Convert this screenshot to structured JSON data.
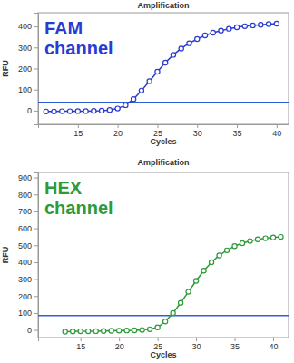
{
  "chart_data": [
    {
      "type": "line",
      "title": "Amplification",
      "x_label": "Cycles",
      "y_label": "RFU",
      "annotation": [
        "FAM",
        "channel"
      ],
      "x": [
        11,
        12,
        13,
        14,
        15,
        16,
        17,
        18,
        19,
        20,
        21,
        22,
        23,
        24,
        25,
        26,
        27,
        28,
        29,
        30,
        31,
        32,
        33,
        34,
        35,
        36,
        37,
        38,
        39,
        40
      ],
      "values": [
        -4,
        -4,
        -3,
        -3,
        -2,
        -2,
        -1,
        0,
        3,
        10,
        26,
        55,
        95,
        140,
        185,
        228,
        265,
        295,
        320,
        340,
        357,
        370,
        380,
        389,
        396,
        401,
        405,
        408,
        411,
        413
      ],
      "color": "#2a3bd1",
      "marker": "circle",
      "threshold": 40,
      "xlim": [
        10,
        41.5
      ],
      "xticks": [
        15,
        20,
        25,
        30,
        35,
        40
      ],
      "ylim": [
        -65,
        465
      ],
      "yticks": [
        0,
        100,
        200,
        300,
        400
      ],
      "grid": false
    },
    {
      "type": "line",
      "title": "Amplification",
      "x_label": "Cycles",
      "y_label": "RFU",
      "annotation": [
        "HEX",
        "channel"
      ],
      "x": [
        13,
        14,
        15,
        16,
        17,
        18,
        19,
        20,
        21,
        22,
        23,
        24,
        25,
        26,
        27,
        28,
        29,
        30,
        31,
        32,
        33,
        34,
        35,
        36,
        37,
        38,
        39,
        40,
        41
      ],
      "values": [
        -10,
        -9,
        -8,
        -8,
        -7,
        -6,
        -5,
        -4,
        -3,
        -2,
        0,
        4,
        15,
        50,
        100,
        160,
        225,
        290,
        350,
        400,
        440,
        470,
        495,
        512,
        525,
        535,
        541,
        546,
        549
      ],
      "color": "#2e9a3a",
      "marker": "circle",
      "threshold": 85,
      "xlim": [
        9.5,
        42
      ],
      "xticks": [
        15,
        20,
        25,
        30,
        35,
        40
      ],
      "ylim": [
        -45,
        930
      ],
      "yticks": [
        0,
        100,
        200,
        300,
        400,
        500,
        600,
        700,
        800,
        900
      ],
      "grid": false
    }
  ]
}
